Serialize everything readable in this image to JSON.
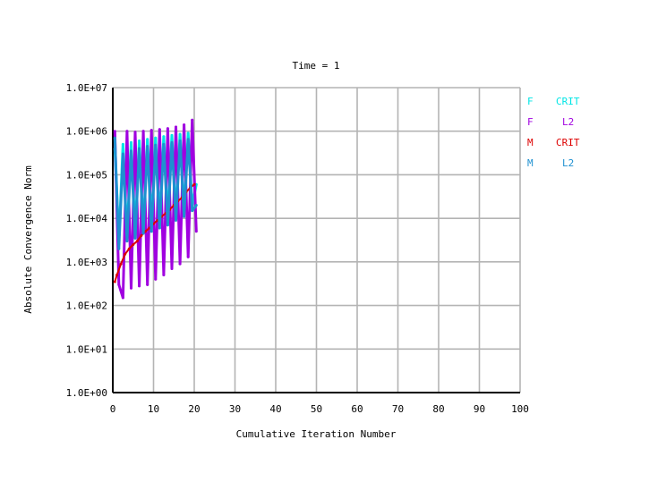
{
  "chart_data": {
    "type": "line",
    "title": "Time = 1",
    "xlabel": "Cumulative Iteration Number",
    "ylabel": "Absolute Convergence Norm",
    "xlim": [
      0,
      100
    ],
    "ylim_log10": [
      0,
      7
    ],
    "y_scale": "log",
    "grid": true,
    "legend_position": "right",
    "x_ticks": [
      "0",
      "10",
      "20",
      "30",
      "40",
      "50",
      "60",
      "70",
      "80",
      "90",
      "100"
    ],
    "y_ticks": [
      "1.0E+00",
      "1.0E+01",
      "1.0E+02",
      "1.0E+03",
      "1.0E+04",
      "1.0E+05",
      "1.0E+06",
      "1.0E+07"
    ],
    "legend": [
      {
        "force": "F",
        "type": "CRIT",
        "force_color": "#00e5e5",
        "type_color": "#00e5e5"
      },
      {
        "force": "F",
        "type": "L2",
        "force_color": "#a000e0",
        "type_color": "#a000e0"
      },
      {
        "force": "M",
        "type": "CRIT",
        "force_color": "#dd0000",
        "type_color": "#dd0000"
      },
      {
        "force": "M",
        "type": "L2",
        "force_color": "#1e90d0",
        "type_color": "#1e90d0"
      }
    ],
    "series": [
      {
        "name": "F CRIT",
        "color": "#00e5e5",
        "x": [
          0.5,
          1.5,
          2.5,
          3.5,
          4.5,
          5.5,
          6.5,
          7.5,
          8.5,
          9.5,
          10.5,
          11.5,
          12.5,
          13.5,
          14.5,
          15.5,
          16.5,
          17.5,
          18.5,
          19.5,
          20.5
        ],
        "y": [
          400000,
          3000,
          500000,
          4000,
          550000,
          5000,
          600000,
          6000,
          650000,
          8000,
          700000,
          9000,
          750000,
          10000,
          800000,
          12000,
          850000,
          15000,
          900000,
          20000,
          60000
        ]
      },
      {
        "name": "F L2",
        "color": "#a000e0",
        "x": [
          0.5,
          1.5,
          2.5,
          3.5,
          4.5,
          5.5,
          6.5,
          7.5,
          8.5,
          9.5,
          10.5,
          11.5,
          12.5,
          13.5,
          14.5,
          15.5,
          16.5,
          17.5,
          18.5,
          19.5,
          20.5
        ],
        "y": [
          1000000,
          300,
          150,
          1000000,
          250,
          950000,
          280,
          1000000,
          300,
          1050000,
          400,
          1100000,
          500,
          1150000,
          700,
          1250000,
          900,
          1400000,
          1300,
          1800000,
          5000
        ]
      },
      {
        "name": "M CRIT",
        "color": "#dd0000",
        "x": [
          0.5,
          1,
          2,
          3,
          4,
          5,
          6,
          7,
          8,
          9,
          10,
          11,
          12,
          13,
          14,
          15,
          16,
          17,
          18,
          19,
          20
        ],
        "y": [
          350,
          500,
          900,
          1500,
          2000,
          2500,
          3000,
          4000,
          5000,
          6000,
          7500,
          9000,
          11000,
          13000,
          16000,
          20000,
          25000,
          30000,
          40000,
          50000,
          60000
        ]
      },
      {
        "name": "M L2",
        "color": "#1e90d0",
        "x": [
          0.5,
          1.5,
          2.5,
          3.5,
          4.5,
          5.5,
          6.5,
          7.5,
          8.5,
          9.5,
          10.5,
          11.5,
          12.5,
          13.5,
          14.5,
          15.5,
          16.5,
          17.5,
          18.5,
          19.5,
          20.5
        ],
        "y": [
          700000,
          2000,
          300000,
          3000,
          350000,
          3500,
          400000,
          4500,
          450000,
          5000,
          480000,
          6000,
          500000,
          7000,
          550000,
          9000,
          600000,
          11000,
          650000,
          15000,
          20000
        ]
      }
    ]
  }
}
